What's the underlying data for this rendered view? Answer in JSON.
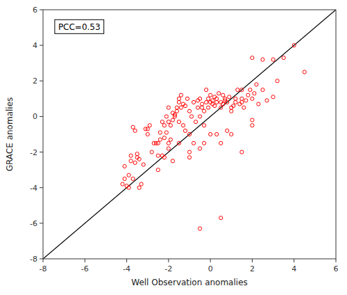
{
  "chart_data": {
    "type": "scatter",
    "xlabel": "Well Observation anomalies",
    "ylabel": "GRACE anomalies",
    "xlim": [
      -8,
      6
    ],
    "ylim": [
      -8,
      6
    ],
    "xticks": [
      -8,
      -6,
      -4,
      -2,
      0,
      2,
      4,
      6
    ],
    "yticks": [
      -8,
      -6,
      -4,
      -2,
      0,
      2,
      4,
      6
    ],
    "grid": false,
    "annotations": [
      "PCC=0.53"
    ],
    "series": [
      {
        "type": "scatter",
        "marker": "circle",
        "color": "#FF0000",
        "x": [
          -4.2,
          -4.1,
          -4.0,
          -3.9,
          -3.8,
          -3.7,
          -3.6,
          -3.5,
          -3.4,
          -4.1,
          -3.9,
          -3.8,
          -3.7,
          -3.6,
          -3.5,
          -3.4,
          -3.3,
          -3.2,
          -3.1,
          -3.0,
          -2.9,
          -2.8,
          -2.7,
          -2.6,
          -2.5,
          -2.5,
          -2.4,
          -2.4,
          -2.3,
          -2.3,
          -2.2,
          -2.2,
          -2.1,
          -2.1,
          -2.0,
          -2.0,
          -2.0,
          -1.9,
          -1.9,
          -1.8,
          -1.8,
          -1.7,
          -1.7,
          -1.6,
          -1.6,
          -1.5,
          -1.5,
          -1.5,
          -1.4,
          -1.4,
          -1.3,
          -1.3,
          -1.2,
          -1.2,
          -1.1,
          -1.0,
          -1.0,
          -0.9,
          -0.8,
          -0.8,
          -0.7,
          -0.6,
          -0.6,
          -0.5,
          -0.5,
          -0.4,
          -0.4,
          -0.3,
          -0.3,
          -0.2,
          -0.2,
          -0.1,
          -0.1,
          0.0,
          0.0,
          0.1,
          0.1,
          0.2,
          0.2,
          0.3,
          0.3,
          0.4,
          0.5,
          0.5,
          0.6,
          0.6,
          0.7,
          0.7,
          0.8,
          0.9,
          1.0,
          1.0,
          1.1,
          1.2,
          1.2,
          1.3,
          1.4,
          1.5,
          1.5,
          1.6,
          1.7,
          1.8,
          1.9,
          2.0,
          2.1,
          2.2,
          2.3,
          2.5,
          2.7,
          3.0,
          3.2,
          4.5,
          -2.2,
          -1.0,
          -0.5,
          0.5,
          2.0,
          2.5,
          3.0,
          -3.0,
          -2.5,
          -2.0,
          -1.5,
          -0.5,
          0.0,
          0.5,
          1.0,
          1.5,
          2.0,
          -1.8,
          -1.0,
          -0.3,
          0.3,
          0.8,
          1.5,
          2.0,
          3.5,
          4.0
        ],
        "values": [
          -3.8,
          -3.5,
          -3.9,
          -4.0,
          -2.2,
          -0.6,
          -0.8,
          -2.1,
          -2.4,
          -2.8,
          -3.3,
          -2.5,
          -3.5,
          -2.6,
          -2.3,
          -4.0,
          -3.8,
          -2.7,
          -0.7,
          -0.7,
          -0.5,
          -2.0,
          -1.5,
          -1.5,
          -3.0,
          -1.5,
          -1.3,
          -0.9,
          -2.2,
          -0.3,
          -2.3,
          -1.2,
          -0.9,
          0.0,
          -1.5,
          -0.3,
          0.5,
          -1.3,
          -0.5,
          0.2,
          -0.2,
          0.0,
          0.1,
          0.3,
          0.5,
          0.8,
          1.0,
          -0.3,
          0.5,
          1.2,
          0.7,
          -0.5,
          -0.8,
          0.6,
          1.0,
          0.3,
          -1.0,
          0.0,
          0.8,
          -1.5,
          -0.3,
          0.5,
          0.9,
          0.0,
          1.0,
          0.7,
          0.5,
          -0.5,
          0.3,
          0.8,
          1.5,
          1.0,
          0.5,
          1.2,
          0.8,
          0.7,
          0.9,
          1.1,
          0.6,
          0.8,
          1.0,
          1.3,
          0.5,
          0.8,
          1.2,
          0.7,
          1.0,
          0.9,
          0.8,
          1.1,
          0.3,
          0.5,
          0.6,
          0.8,
          1.0,
          1.5,
          0.7,
          1.0,
          0.8,
          0.5,
          0.9,
          1.2,
          1.5,
          1.0,
          1.3,
          1.8,
          0.7,
          1.5,
          0.9,
          1.1,
          2.0,
          2.5,
          -0.5,
          -2.0,
          -6.3,
          -5.7,
          -0.2,
          3.2,
          3.2,
          -1.0,
          -2.2,
          -1.8,
          -1.5,
          -1.8,
          -1.0,
          -1.5,
          -1.0,
          -2.0,
          -0.5,
          -2.5,
          -2.3,
          -1.5,
          -1.0,
          -0.8,
          1.5,
          3.3,
          3.3,
          4.0
        ]
      },
      {
        "type": "line",
        "color": "#000000",
        "x": [
          -8,
          6
        ],
        "values": [
          -8,
          6
        ]
      }
    ]
  }
}
